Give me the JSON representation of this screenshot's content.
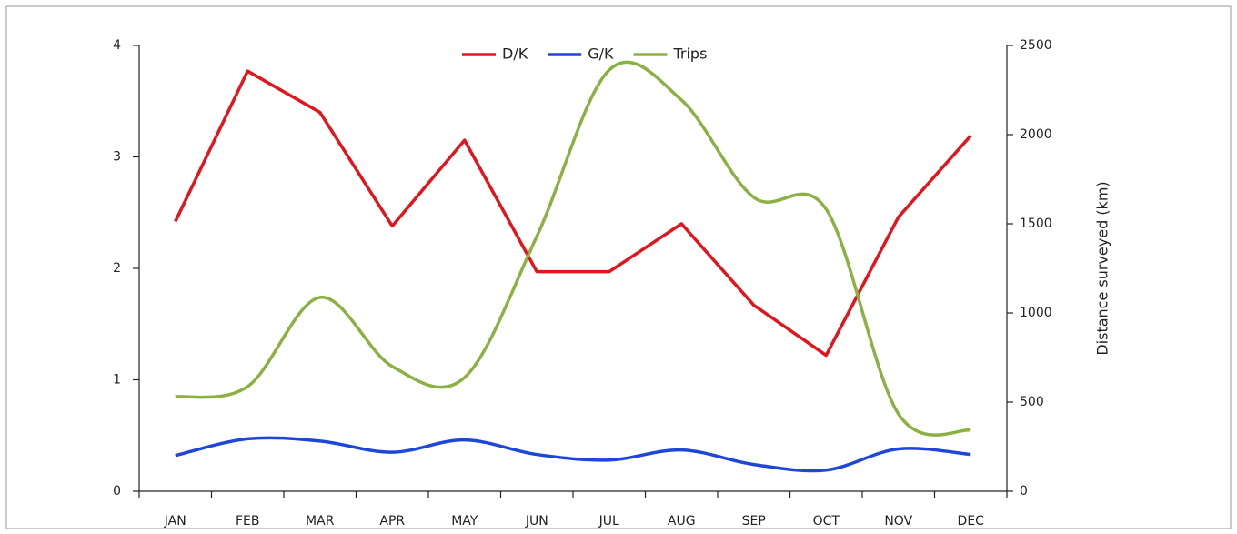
{
  "chart_data": {
    "type": "line",
    "categories": [
      "JAN",
      "FEB",
      "MAR",
      "APR",
      "MAY",
      "JUN",
      "JUL",
      "AUG",
      "SEP",
      "OCT",
      "NOV",
      "DEC"
    ],
    "series": [
      {
        "name": "D/K",
        "color": "#e3141c",
        "smooth": false,
        "values": [
          2.42,
          3.77,
          3.4,
          2.38,
          3.15,
          1.97,
          1.97,
          2.4,
          1.67,
          1.22,
          2.46,
          3.19
        ]
      },
      {
        "name": "G/K",
        "color": "#1f47d6",
        "smooth": true,
        "values": [
          0.32,
          0.47,
          0.45,
          0.35,
          0.46,
          0.33,
          0.28,
          0.37,
          0.24,
          0.19,
          0.38,
          0.33
        ]
      },
      {
        "name": "Trips",
        "color": "#8db043",
        "smooth": true,
        "axis": "y2",
        "values": [
          530,
          587,
          1087,
          700,
          638,
          1430,
          2362,
          2194,
          1648,
          1582,
          434,
          342
        ]
      }
    ],
    "ylim": [
      0,
      4
    ],
    "yticks": [
      0,
      1,
      2,
      3,
      4
    ],
    "y2label": "Distance  surveyed (km)",
    "y2lim": [
      0,
      2500
    ],
    "y2ticks": [
      0,
      500,
      1000,
      1500,
      2000,
      2500
    ],
    "legend": "top"
  }
}
